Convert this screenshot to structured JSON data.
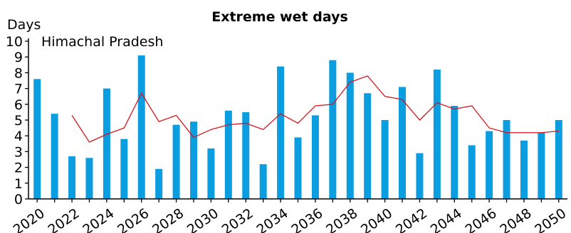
{
  "chart_data": {
    "type": "bar",
    "title": "Extreme wet days",
    "ylabel": "Days",
    "subtitle": "Himachal Pradesh",
    "ylim": [
      0,
      10
    ],
    "yticks": [
      0,
      1,
      2,
      3,
      4,
      5,
      6,
      7,
      8,
      9,
      10
    ],
    "x": [
      2020,
      2021,
      2022,
      2023,
      2024,
      2025,
      2026,
      2027,
      2028,
      2029,
      2030,
      2031,
      2032,
      2033,
      2034,
      2035,
      2036,
      2037,
      2038,
      2039,
      2040,
      2041,
      2042,
      2043,
      2044,
      2045,
      2046,
      2047,
      2048,
      2049,
      2050
    ],
    "xtick_labels": [
      "2020",
      "2022",
      "2024",
      "2026",
      "2028",
      "2030",
      "2032",
      "2034",
      "2036",
      "2038",
      "2040",
      "2042",
      "2044",
      "2046",
      "2048",
      "2050"
    ],
    "series": [
      {
        "type": "bar",
        "color": "#0a9de0",
        "values": [
          7.6,
          5.4,
          2.7,
          2.6,
          7.0,
          3.8,
          9.1,
          1.9,
          4.7,
          4.9,
          3.2,
          5.6,
          5.5,
          2.2,
          8.4,
          3.9,
          5.3,
          8.8,
          8.0,
          6.7,
          5.0,
          7.1,
          2.9,
          8.2,
          5.9,
          3.4,
          4.3,
          5.0,
          3.7,
          4.2,
          5.0
        ]
      },
      {
        "type": "line",
        "color": "#d8141e",
        "values": [
          null,
          null,
          5.3,
          3.6,
          4.1,
          4.5,
          6.7,
          4.9,
          5.3,
          3.9,
          4.4,
          4.7,
          4.8,
          4.4,
          5.4,
          4.8,
          5.9,
          6.0,
          7.4,
          7.8,
          6.5,
          6.3,
          5.0,
          6.1,
          5.7,
          5.9,
          4.5,
          4.2,
          4.2,
          4.2,
          4.3
        ]
      }
    ]
  }
}
